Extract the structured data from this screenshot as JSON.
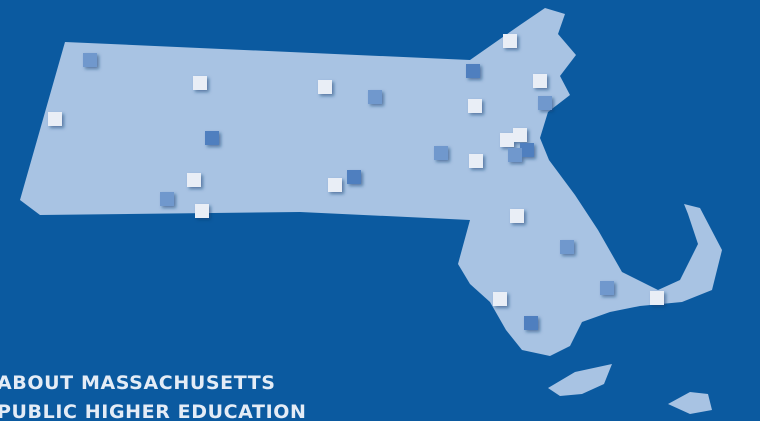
{
  "heading": {
    "line1": "ABOUT MASSACHUSETTS",
    "line2": "PUBLIC HIGHER EDUCATION"
  }
}
